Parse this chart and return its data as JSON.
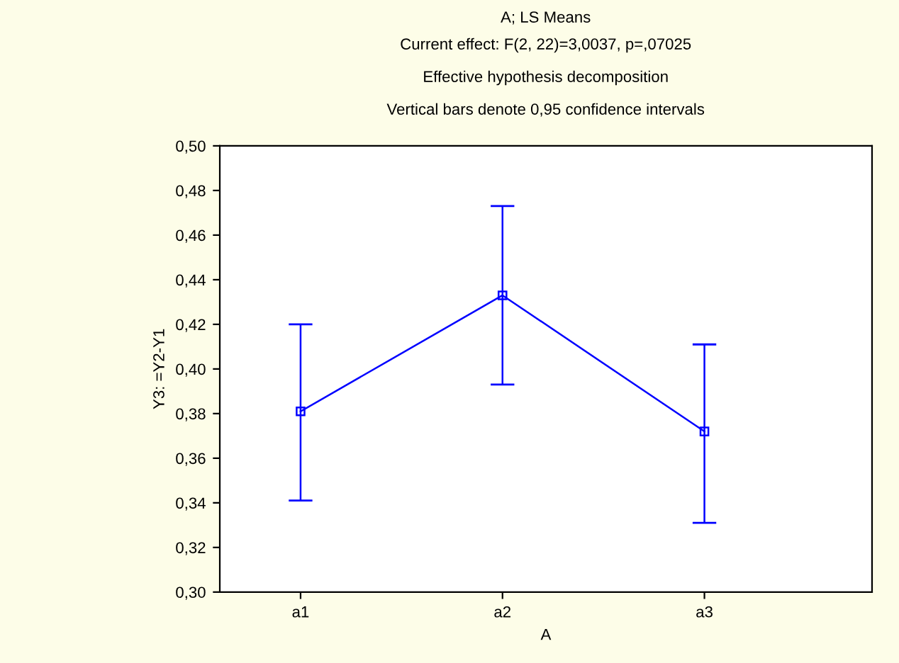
{
  "chart_data": {
    "type": "line",
    "title": "A; LS Means",
    "subtitle": "Current effect: F(2, 22)=3,0037, p=,07025",
    "annotations": [
      "Effective hypothesis decomposition",
      "Vertical bars denote 0,95 confidence intervals"
    ],
    "xlabel": "A",
    "ylabel": "Y3: =Y2-Y1",
    "categories": [
      "a1",
      "a2",
      "a3"
    ],
    "series": [
      {
        "color": "#0000ff",
        "values": [
          0.381,
          0.433,
          0.372
        ],
        "errors": [
          [
            0.341,
            0.42
          ],
          [
            0.393,
            0.473
          ],
          [
            0.331,
            0.411
          ]
        ]
      }
    ],
    "ylim": [
      0.3,
      0.5
    ],
    "yticks": [
      {
        "value": 0.3,
        "label": "0,30"
      },
      {
        "value": 0.32,
        "label": "0,32"
      },
      {
        "value": 0.34,
        "label": "0,34"
      },
      {
        "value": 0.36,
        "label": "0,36"
      },
      {
        "value": 0.38,
        "label": "0,38"
      },
      {
        "value": 0.4,
        "label": "0,40"
      },
      {
        "value": 0.42,
        "label": "0,42"
      },
      {
        "value": 0.44,
        "label": "0,44"
      },
      {
        "value": 0.46,
        "label": "0,46"
      },
      {
        "value": 0.48,
        "label": "0,48"
      },
      {
        "value": 0.5,
        "label": "0,50"
      }
    ],
    "marker": "square",
    "line_style": "solid",
    "grid": false,
    "legend": false
  }
}
